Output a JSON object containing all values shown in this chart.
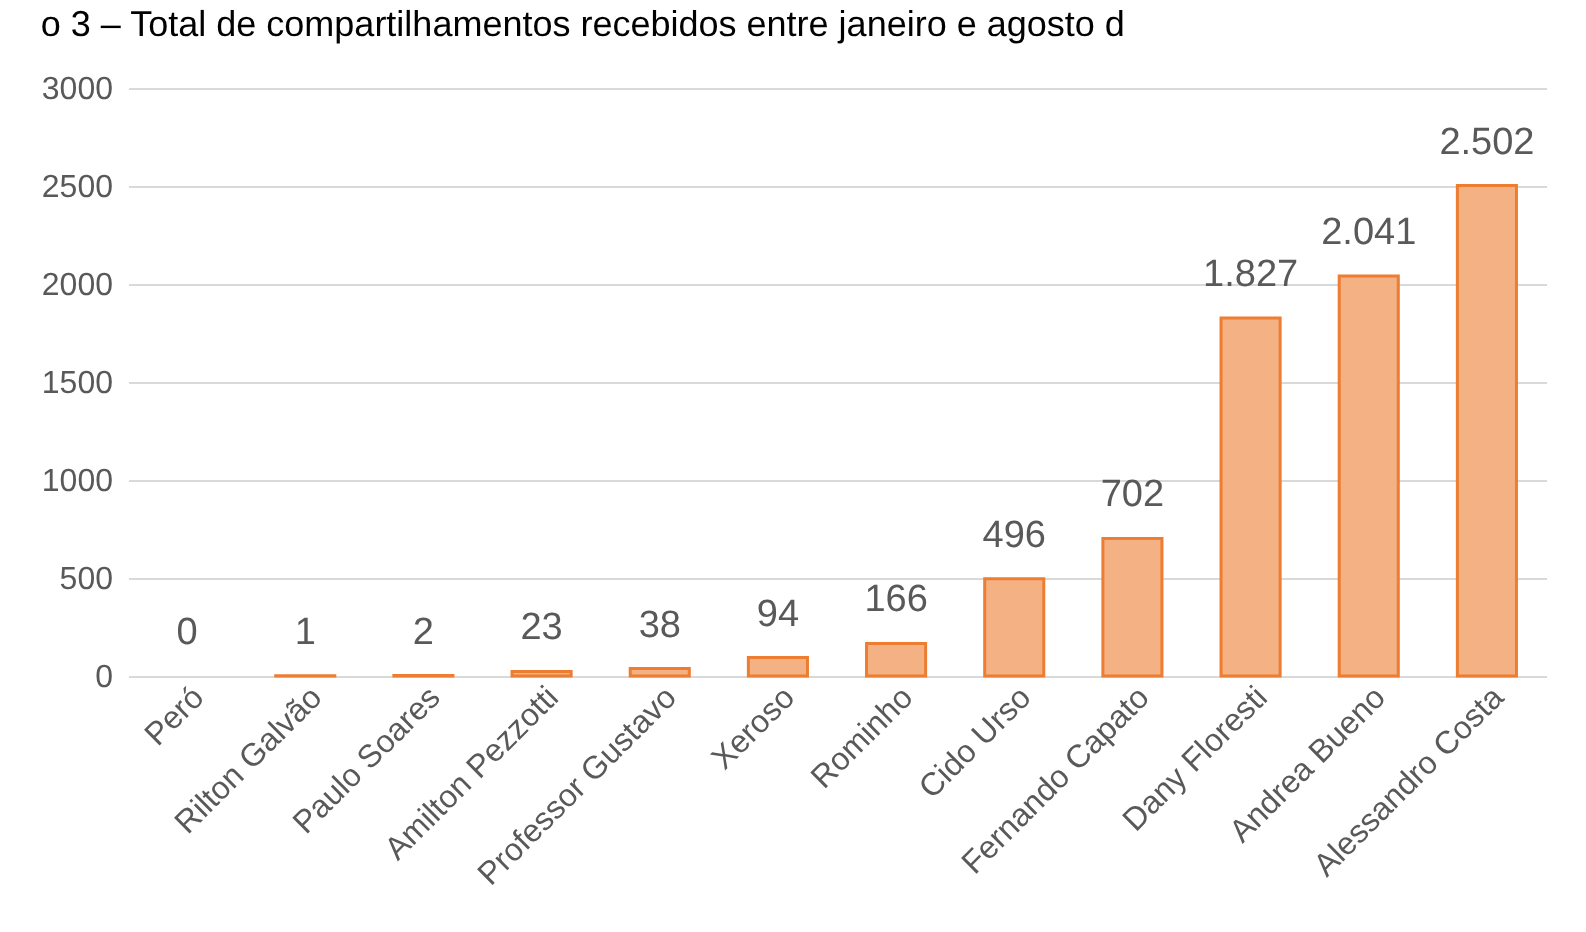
{
  "chart_data": {
    "type": "bar",
    "title": "o 3 – Total de compartilhamentos recebidos entre janeiro e agosto d",
    "categories": [
      "Peró",
      "Rilton Galvão",
      "Paulo Soares",
      "Amilton Pezzotti",
      "Professor Gustavo",
      "Xeroso",
      "Rominho",
      "Cido Urso",
      "Fernando Capato",
      "Dany Floresti",
      "Andrea Bueno",
      "Alessandro Costa"
    ],
    "values": [
      0,
      1,
      2,
      23,
      38,
      94,
      166,
      496,
      702,
      1827,
      2041,
      2502
    ],
    "value_labels": [
      "0",
      "1",
      "2",
      "23",
      "38",
      "94",
      "166",
      "496",
      "702",
      "1.827",
      "2.041",
      "2.502"
    ],
    "color": "#f4b183",
    "ylim": [
      0,
      3000
    ],
    "yticks": [
      0,
      500,
      1000,
      1500,
      2000,
      2500,
      3000
    ],
    "grid": "y"
  }
}
